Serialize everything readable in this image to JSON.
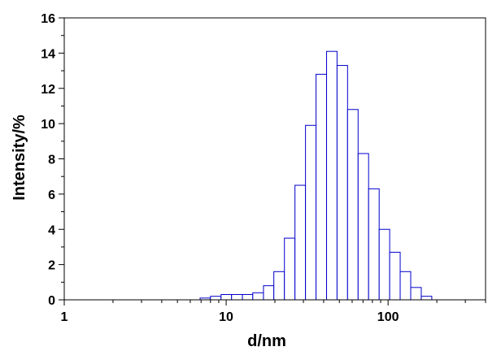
{
  "chart_data": {
    "type": "bar",
    "x_scale": "log",
    "xlim": [
      1,
      400
    ],
    "ylim": [
      0,
      16
    ],
    "xlabel": "d/nm",
    "ylabel": "Intensity/%",
    "x_ticks": [
      {
        "value": 1,
        "label": "1"
      },
      {
        "value": 10,
        "label": "10"
      },
      {
        "value": 100,
        "label": "100"
      }
    ],
    "y_ticks": [
      {
        "value": 0,
        "label": "0"
      },
      {
        "value": 2,
        "label": "2"
      },
      {
        "value": 4,
        "label": "4"
      },
      {
        "value": 6,
        "label": "6"
      },
      {
        "value": 8,
        "label": "8"
      },
      {
        "value": 10,
        "label": "10"
      },
      {
        "value": 12,
        "label": "12"
      },
      {
        "value": 14,
        "label": "14"
      },
      {
        "value": 16,
        "label": "16"
      }
    ],
    "bar_color": "#0000cc",
    "bins": [
      {
        "from": 6.9,
        "to": 8.0,
        "value": 0.1
      },
      {
        "from": 8.0,
        "to": 9.3,
        "value": 0.2
      },
      {
        "from": 9.3,
        "to": 10.8,
        "value": 0.3
      },
      {
        "from": 10.8,
        "to": 12.6,
        "value": 0.3
      },
      {
        "from": 12.6,
        "to": 14.6,
        "value": 0.3
      },
      {
        "from": 14.6,
        "to": 17.0,
        "value": 0.4
      },
      {
        "from": 17.0,
        "to": 19.7,
        "value": 0.8
      },
      {
        "from": 19.7,
        "to": 22.9,
        "value": 1.6
      },
      {
        "from": 22.9,
        "to": 26.6,
        "value": 3.5
      },
      {
        "from": 26.6,
        "to": 30.9,
        "value": 6.5
      },
      {
        "from": 30.9,
        "to": 35.9,
        "value": 9.9
      },
      {
        "from": 35.9,
        "to": 41.7,
        "value": 12.8
      },
      {
        "from": 41.7,
        "to": 48.4,
        "value": 14.1
      },
      {
        "from": 48.4,
        "to": 56.2,
        "value": 13.3
      },
      {
        "from": 56.2,
        "to": 65.3,
        "value": 10.8
      },
      {
        "from": 65.3,
        "to": 75.8,
        "value": 8.3
      },
      {
        "from": 75.8,
        "to": 88.1,
        "value": 6.3
      },
      {
        "from": 88.1,
        "to": 102.3,
        "value": 4.0
      },
      {
        "from": 102.3,
        "to": 118.8,
        "value": 2.7
      },
      {
        "from": 118.8,
        "to": 138.0,
        "value": 1.6
      },
      {
        "from": 138.0,
        "to": 160.3,
        "value": 0.7
      },
      {
        "from": 160.3,
        "to": 186.2,
        "value": 0.2
      }
    ]
  }
}
